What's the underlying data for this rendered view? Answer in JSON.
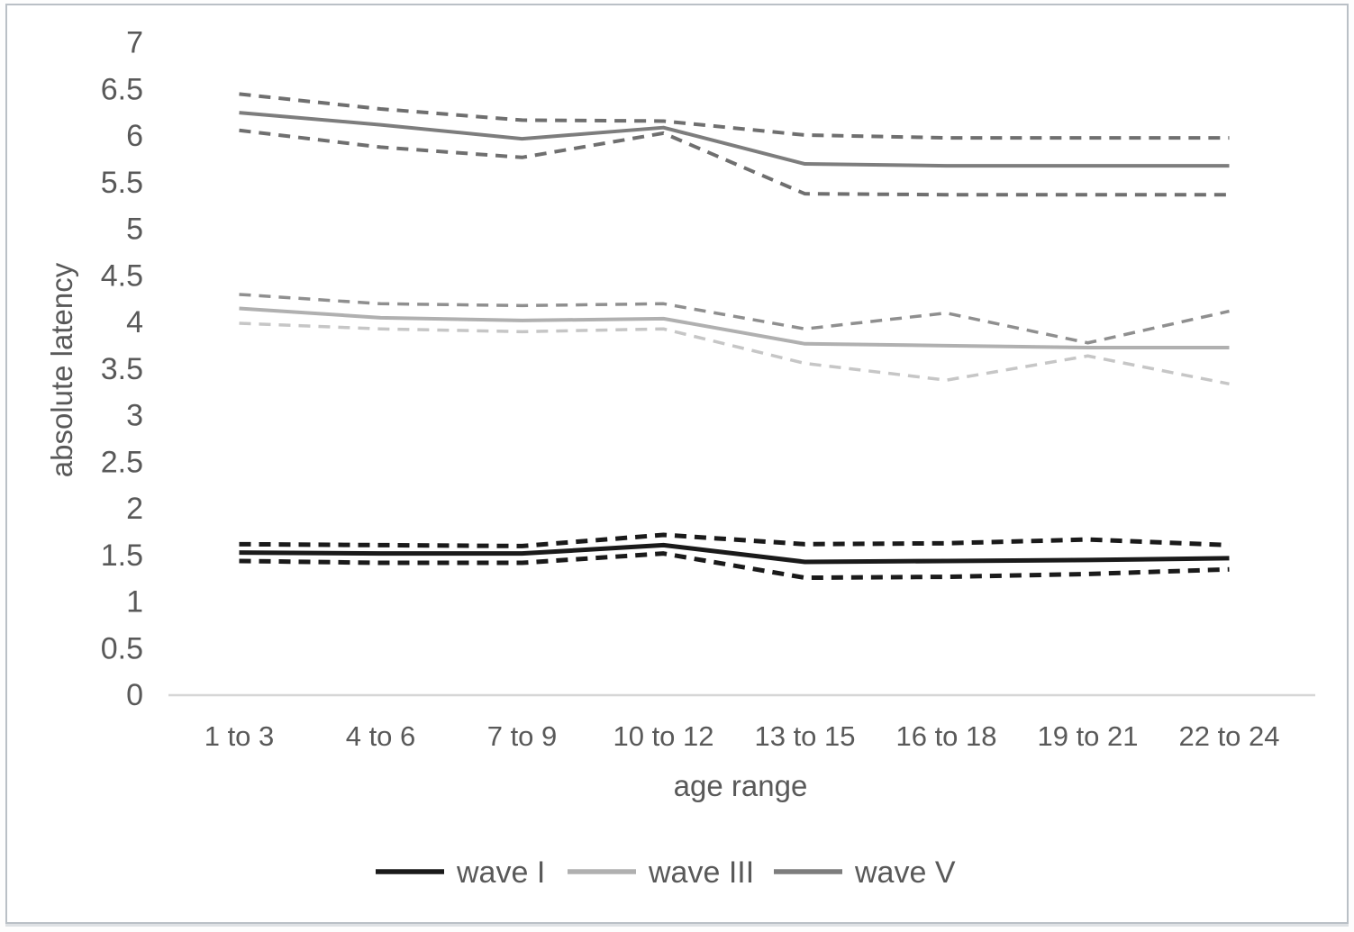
{
  "frame": {
    "background": "#ffffff",
    "border_color": "#bac0c6"
  },
  "chart_data": {
    "type": "line",
    "title": "",
    "xlabel": "age range",
    "ylabel": "absolute latency",
    "categories": [
      "1 to 3",
      "4 to 6",
      "7 to 9",
      "10 to 12",
      "13 to 15",
      "16 to 18",
      "19 to 21",
      "22 to 24"
    ],
    "ylim": [
      0,
      7
    ],
    "ytick_step": 0.5,
    "grid": false,
    "axis_color": "#d6d6d6",
    "text_color": "#595959",
    "legend": {
      "position": "bottom",
      "entries": [
        {
          "label": "wave I",
          "color": "#1a1a1a"
        },
        {
          "label": "wave III",
          "color": "#b0b0b0"
        },
        {
          "label": "wave V",
          "color": "#7d7d7d"
        }
      ]
    },
    "series": [
      {
        "name": "wave V upper bound",
        "wave": "wave V",
        "role": "upper",
        "style": "dashed",
        "color": "#6f6f6f",
        "width": 4,
        "values": [
          6.45,
          6.29,
          6.17,
          6.16,
          6.01,
          5.98,
          5.98,
          5.98
        ]
      },
      {
        "name": "wave V mean",
        "wave": "wave V",
        "role": "mean",
        "style": "solid",
        "color": "#7d7d7d",
        "width": 4,
        "values": [
          6.25,
          6.12,
          5.97,
          6.09,
          5.7,
          5.68,
          5.68,
          5.68
        ]
      },
      {
        "name": "wave V lower bound",
        "wave": "wave V",
        "role": "lower",
        "style": "dashed",
        "color": "#6f6f6f",
        "width": 4,
        "values": [
          6.06,
          5.88,
          5.77,
          6.03,
          5.38,
          5.37,
          5.37,
          5.37
        ]
      },
      {
        "name": "wave III upper bound",
        "wave": "wave III",
        "role": "upper",
        "style": "dashed",
        "color": "#8f8f8f",
        "width": 3.5,
        "values": [
          4.3,
          4.2,
          4.18,
          4.2,
          3.93,
          4.1,
          3.78,
          4.12
        ]
      },
      {
        "name": "wave III mean",
        "wave": "wave III",
        "role": "mean",
        "style": "solid",
        "color": "#b0b0b0",
        "width": 4,
        "values": [
          4.15,
          4.05,
          4.02,
          4.04,
          3.77,
          3.75,
          3.73,
          3.73
        ]
      },
      {
        "name": "wave III lower bound",
        "wave": "wave III",
        "role": "lower",
        "style": "dashed",
        "color": "#c6c6c6",
        "width": 3.5,
        "values": [
          3.99,
          3.93,
          3.9,
          3.93,
          3.56,
          3.38,
          3.64,
          3.34
        ]
      },
      {
        "name": "wave I upper bound",
        "wave": "wave I",
        "role": "upper",
        "style": "dashed",
        "color": "#1a1a1a",
        "width": 5,
        "values": [
          1.62,
          1.61,
          1.6,
          1.72,
          1.62,
          1.63,
          1.67,
          1.61
        ]
      },
      {
        "name": "wave I mean",
        "wave": "wave I",
        "role": "mean",
        "style": "solid",
        "color": "#1a1a1a",
        "width": 5,
        "values": [
          1.53,
          1.52,
          1.52,
          1.61,
          1.43,
          1.44,
          1.45,
          1.47
        ]
      },
      {
        "name": "wave I lower bound",
        "wave": "wave I",
        "role": "lower",
        "style": "dashed",
        "color": "#1a1a1a",
        "width": 5,
        "values": [
          1.44,
          1.42,
          1.42,
          1.52,
          1.26,
          1.27,
          1.3,
          1.35
        ]
      }
    ]
  }
}
